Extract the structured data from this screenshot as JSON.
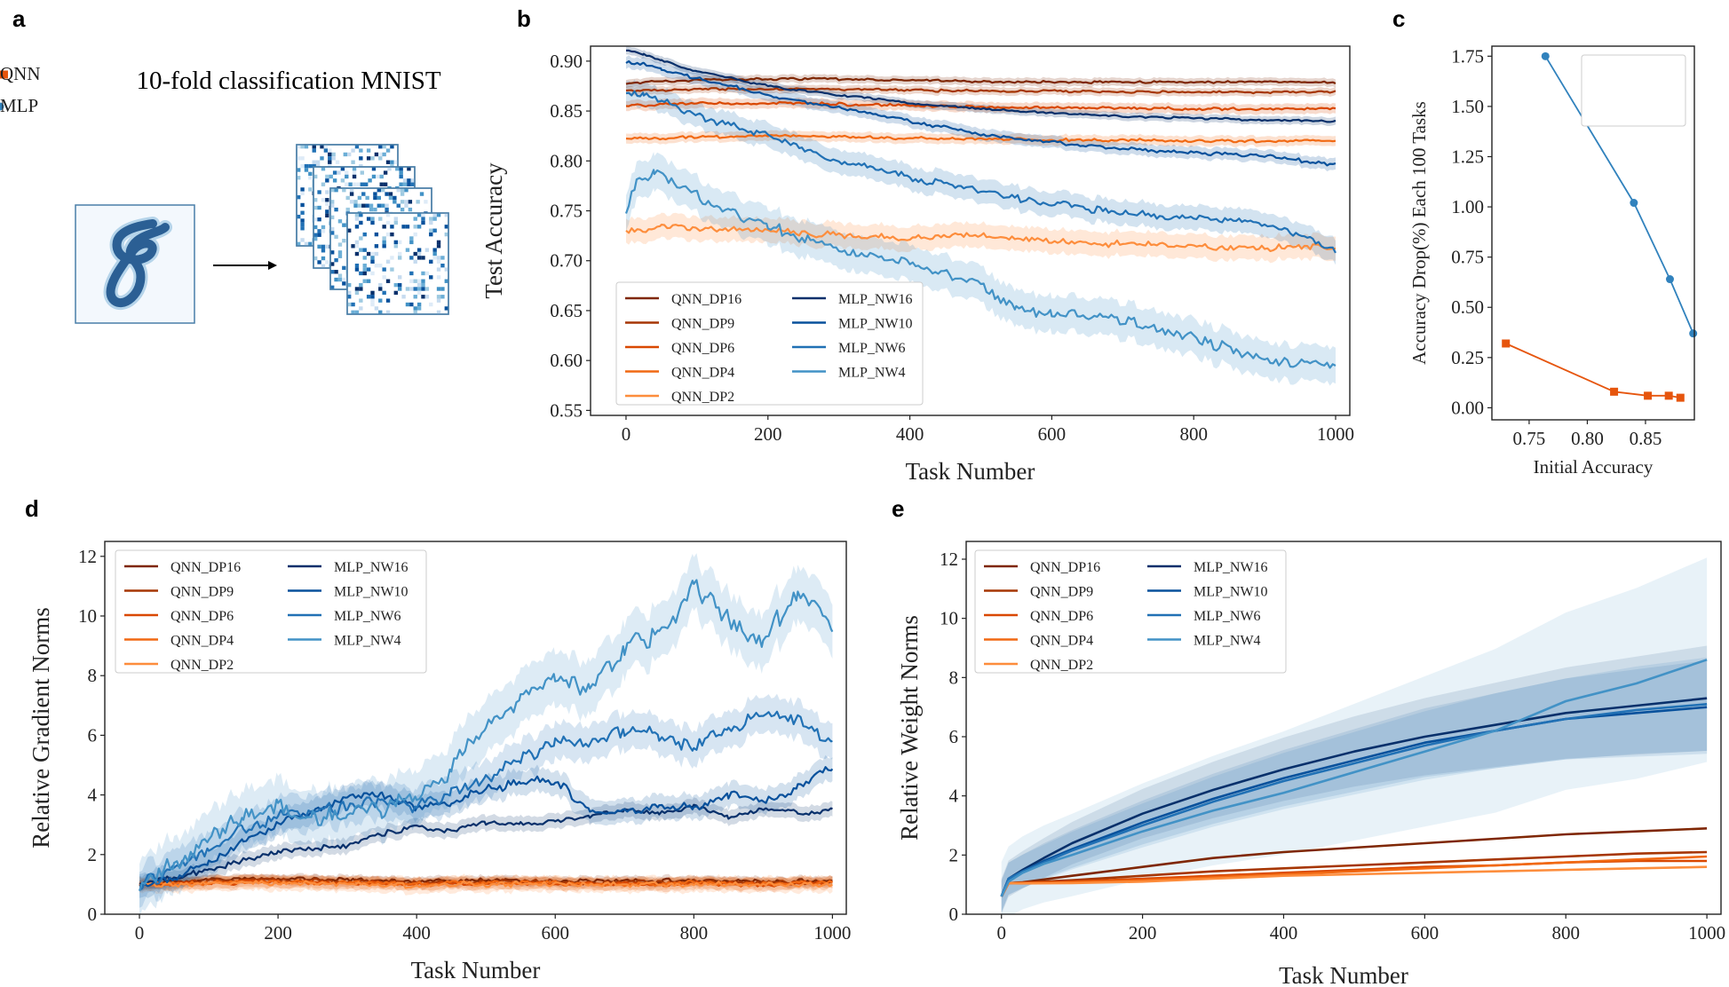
{
  "panel_labels": {
    "a": "a",
    "b": "b",
    "c": "c",
    "d": "d",
    "e": "e"
  },
  "colors": {
    "QNN_DP16": "#7f2704",
    "QNN_DP9": "#a63603",
    "QNN_DP6": "#d94801",
    "QNN_DP4": "#f16913",
    "QNN_DP2": "#fd8d3c",
    "MLP_NW16": "#08306b",
    "MLP_NW10": "#08519c",
    "MLP_NW6": "#2171b5",
    "MLP_NW4": "#4292c6",
    "QNN": "#e6550d",
    "MLP": "#3182bd"
  },
  "panel_a": {
    "title": "10-fold classification MNIST",
    "arrow": "→"
  },
  "chart_data": [
    {
      "id": "b",
      "type": "line",
      "title": "",
      "xlabel": "Task Number",
      "ylabel": "Test Accuracy",
      "xlim": [
        -50,
        1020
      ],
      "ylim": [
        0.545,
        0.915
      ],
      "xticks": [
        0,
        200,
        400,
        600,
        800,
        1000
      ],
      "yticks": [
        0.55,
        0.6,
        0.65,
        0.7,
        0.75,
        0.8,
        0.85,
        0.9
      ],
      "legend": "lower-left",
      "series": [
        {
          "name": "QNN_DP16",
          "x": [
            0,
            100,
            200,
            300,
            400,
            500,
            600,
            700,
            800,
            900,
            1000
          ],
          "values": [
            0.878,
            0.881,
            0.882,
            0.882,
            0.881,
            0.879,
            0.879,
            0.879,
            0.879,
            0.879,
            0.879
          ],
          "band": 0.004
        },
        {
          "name": "QNN_DP9",
          "x": [
            0,
            100,
            200,
            300,
            400,
            500,
            600,
            700,
            800,
            900,
            1000
          ],
          "values": [
            0.87,
            0.872,
            0.872,
            0.872,
            0.871,
            0.87,
            0.87,
            0.869,
            0.869,
            0.869,
            0.869
          ],
          "band": 0.004
        },
        {
          "name": "QNN_DP6",
          "x": [
            0,
            100,
            200,
            300,
            400,
            500,
            600,
            700,
            800,
            900,
            1000
          ],
          "values": [
            0.855,
            0.858,
            0.858,
            0.857,
            0.855,
            0.854,
            0.853,
            0.853,
            0.852,
            0.852,
            0.852
          ],
          "band": 0.005
        },
        {
          "name": "QNN_DP4",
          "x": [
            0,
            100,
            200,
            300,
            400,
            500,
            600,
            700,
            800,
            900,
            1000
          ],
          "values": [
            0.822,
            0.824,
            0.825,
            0.824,
            0.823,
            0.822,
            0.821,
            0.821,
            0.82,
            0.82,
            0.82
          ],
          "band": 0.005
        },
        {
          "name": "QNN_DP2",
          "x": [
            0,
            50,
            100,
            200,
            300,
            400,
            500,
            600,
            700,
            800,
            900,
            1000
          ],
          "values": [
            0.728,
            0.735,
            0.732,
            0.73,
            0.726,
            0.722,
            0.724,
            0.721,
            0.716,
            0.714,
            0.713,
            0.713
          ],
          "band": 0.012
        },
        {
          "name": "MLP_NW16",
          "x": [
            0,
            25,
            50,
            100,
            200,
            300,
            400,
            500,
            600,
            700,
            800,
            900,
            1000
          ],
          "values": [
            0.91,
            0.907,
            0.9,
            0.89,
            0.875,
            0.866,
            0.858,
            0.852,
            0.848,
            0.845,
            0.843,
            0.841,
            0.84
          ],
          "band": 0.004
        },
        {
          "name": "MLP_NW10",
          "x": [
            0,
            25,
            50,
            100,
            200,
            300,
            400,
            500,
            600,
            700,
            800,
            900,
            1000
          ],
          "values": [
            0.9,
            0.897,
            0.892,
            0.883,
            0.866,
            0.853,
            0.84,
            0.827,
            0.819,
            0.812,
            0.808,
            0.805,
            0.796
          ],
          "band": 0.006
        },
        {
          "name": "MLP_NW6",
          "x": [
            0,
            25,
            50,
            100,
            200,
            300,
            400,
            500,
            600,
            700,
            800,
            900,
            1000
          ],
          "values": [
            0.868,
            0.866,
            0.86,
            0.845,
            0.825,
            0.8,
            0.783,
            0.77,
            0.757,
            0.748,
            0.742,
            0.738,
            0.71
          ],
          "band": 0.012
        },
        {
          "name": "MLP_NW4",
          "x": [
            0,
            15,
            40,
            60,
            100,
            150,
            200,
            300,
            400,
            500,
            550,
            600,
            700,
            800,
            900,
            1000
          ],
          "values": [
            0.745,
            0.78,
            0.788,
            0.78,
            0.765,
            0.748,
            0.735,
            0.712,
            0.697,
            0.675,
            0.65,
            0.648,
            0.64,
            0.622,
            0.6,
            0.597
          ],
          "band": 0.018
        }
      ]
    },
    {
      "id": "c",
      "type": "line",
      "title": "",
      "xlabel": "Initial Accuracy",
      "ylabel": "Accuracy Drop(%) Each 100 Tasks",
      "xlim": [
        0.718,
        0.892
      ],
      "ylim": [
        -0.06,
        1.8
      ],
      "xticks": [
        0.75,
        0.8,
        0.85
      ],
      "ytick_labels": [
        "0.00",
        "0.25",
        "0.50",
        "0.75",
        "1.00",
        "1.25",
        "1.50",
        "1.75"
      ],
      "yticks": [
        0.0,
        0.25,
        0.5,
        0.75,
        1.0,
        1.25,
        1.5,
        1.75
      ],
      "legend": "top-right",
      "series": [
        {
          "name": "QNN",
          "x": [
            0.73,
            0.823,
            0.852,
            0.87,
            0.88
          ],
          "values": [
            0.32,
            0.08,
            0.06,
            0.06,
            0.05
          ],
          "marker": "square"
        },
        {
          "name": "MLP",
          "x": [
            0.764,
            0.84,
            0.871,
            0.891
          ],
          "values": [
            1.75,
            1.02,
            0.64,
            0.37
          ],
          "marker": "circle"
        }
      ]
    },
    {
      "id": "d",
      "type": "line",
      "title": "",
      "xlabel": "Task Number",
      "ylabel": "Relative Gradient Norms",
      "xlim": [
        -50,
        1020
      ],
      "ylim": [
        0,
        12.5
      ],
      "xticks": [
        0,
        200,
        400,
        600,
        800,
        1000
      ],
      "yticks": [
        0,
        2,
        4,
        6,
        8,
        10,
        12
      ],
      "legend": "top-left",
      "series": [
        {
          "name": "QNN_DP16",
          "x": [
            0,
            100,
            200,
            300,
            400,
            500,
            600,
            700,
            800,
            900,
            1000
          ],
          "values": [
            1.0,
            1.15,
            1.2,
            1.15,
            1.1,
            1.15,
            1.1,
            1.1,
            1.15,
            1.1,
            1.12
          ],
          "band": 0.15
        },
        {
          "name": "QNN_DP9",
          "x": [
            0,
            100,
            200,
            300,
            400,
            500,
            600,
            700,
            800,
            900,
            1000
          ],
          "values": [
            1.0,
            1.1,
            1.15,
            1.1,
            1.05,
            1.1,
            1.08,
            1.05,
            1.1,
            1.05,
            1.08
          ],
          "band": 0.15
        },
        {
          "name": "QNN_DP6",
          "x": [
            0,
            100,
            200,
            300,
            400,
            500,
            600,
            700,
            800,
            900,
            1000
          ],
          "values": [
            1.0,
            1.05,
            1.1,
            1.05,
            1.0,
            1.05,
            1.02,
            1.0,
            1.05,
            1.0,
            1.05
          ],
          "band": 0.2
        },
        {
          "name": "QNN_DP4",
          "x": [
            0,
            100,
            200,
            300,
            400,
            500,
            600,
            700,
            800,
            900,
            1000
          ],
          "values": [
            1.0,
            1.05,
            1.08,
            1.05,
            1.02,
            1.05,
            1.03,
            1.02,
            1.05,
            1.02,
            1.05
          ],
          "band": 0.2
        },
        {
          "name": "QNN_DP2",
          "x": [
            0,
            100,
            200,
            300,
            400,
            500,
            600,
            700,
            800,
            900,
            1000
          ],
          "values": [
            1.0,
            1.02,
            1.05,
            1.0,
            0.98,
            1.02,
            1.0,
            0.98,
            1.0,
            0.98,
            1.0
          ],
          "band": 0.25
        },
        {
          "name": "MLP_NW16",
          "x": [
            0,
            50,
            100,
            150,
            200,
            250,
            300,
            350,
            400,
            450,
            500,
            550,
            600,
            650,
            700,
            750,
            800,
            850,
            900,
            950,
            1000
          ],
          "values": [
            1.0,
            1.2,
            1.5,
            1.8,
            2.1,
            2.2,
            2.3,
            2.7,
            2.9,
            2.8,
            3.1,
            3.0,
            3.1,
            3.3,
            3.5,
            3.4,
            3.6,
            3.3,
            3.5,
            3.4,
            3.5
          ],
          "band": 0.25
        },
        {
          "name": "MLP_NW10",
          "x": [
            0,
            50,
            100,
            150,
            200,
            250,
            300,
            350,
            400,
            450,
            500,
            550,
            600,
            650,
            700,
            750,
            800,
            850,
            900,
            950,
            1000
          ],
          "values": [
            1.0,
            1.2,
            1.7,
            2.5,
            3.0,
            3.5,
            3.9,
            4.0,
            3.6,
            3.7,
            4.2,
            4.4,
            4.5,
            3.5,
            3.4,
            3.6,
            3.6,
            4.0,
            3.8,
            4.2,
            5.0
          ],
          "band": 0.4
        },
        {
          "name": "MLP_NW6",
          "x": [
            0,
            50,
            100,
            150,
            200,
            250,
            300,
            350,
            400,
            450,
            500,
            550,
            600,
            650,
            700,
            750,
            800,
            850,
            900,
            950,
            1000
          ],
          "values": [
            1.0,
            1.4,
            2.2,
            2.9,
            3.3,
            3.5,
            3.6,
            3.8,
            3.6,
            4.0,
            4.5,
            5.2,
            5.8,
            5.7,
            6.2,
            6.0,
            5.6,
            6.2,
            6.8,
            6.5,
            5.8
          ],
          "band": 0.6
        },
        {
          "name": "MLP_NW4",
          "x": [
            0,
            50,
            100,
            150,
            200,
            250,
            300,
            350,
            400,
            450,
            500,
            550,
            600,
            650,
            700,
            750,
            800,
            850,
            900,
            950,
            1000
          ],
          "values": [
            1.0,
            1.6,
            2.6,
            3.3,
            3.5,
            3.3,
            3.5,
            3.6,
            4.0,
            4.8,
            6.3,
            7.2,
            8.0,
            7.5,
            9.0,
            9.3,
            11.0,
            9.8,
            9.2,
            10.8,
            9.8
          ],
          "band": 0.9
        }
      ]
    },
    {
      "id": "e",
      "type": "line",
      "title": "",
      "xlabel": "Task Number",
      "ylabel": "Relative Weight Norms",
      "xlim": [
        -50,
        1020
      ],
      "ylim": [
        0,
        12.6
      ],
      "xticks": [
        0,
        200,
        400,
        600,
        800,
        1000
      ],
      "yticks": [
        0,
        2,
        4,
        6,
        8,
        10,
        12
      ],
      "legend": "top-left",
      "series": [
        {
          "name": "QNN_DP16",
          "x": [
            0,
            10,
            30,
            100,
            200,
            300,
            400,
            500,
            600,
            700,
            800,
            900,
            1000
          ],
          "values": [
            0.6,
            1.05,
            1.08,
            1.3,
            1.6,
            1.9,
            2.1,
            2.25,
            2.4,
            2.55,
            2.7,
            2.8,
            2.9
          ],
          "band": 0.0
        },
        {
          "name": "QNN_DP9",
          "x": [
            0,
            10,
            30,
            100,
            200,
            300,
            400,
            500,
            600,
            700,
            800,
            900,
            1000
          ],
          "values": [
            0.6,
            1.05,
            1.07,
            1.15,
            1.3,
            1.45,
            1.55,
            1.65,
            1.75,
            1.85,
            1.95,
            2.05,
            2.1
          ],
          "band": 0.0
        },
        {
          "name": "QNN_DP6",
          "x": [
            0,
            10,
            30,
            100,
            200,
            300,
            400,
            500,
            600,
            700,
            800,
            900,
            1000
          ],
          "values": [
            0.6,
            1.05,
            1.06,
            1.1,
            1.2,
            1.3,
            1.4,
            1.5,
            1.6,
            1.65,
            1.75,
            1.8,
            1.8
          ],
          "band": 0.0
        },
        {
          "name": "QNN_DP4",
          "x": [
            0,
            10,
            30,
            100,
            200,
            300,
            400,
            500,
            600,
            700,
            800,
            900,
            1000
          ],
          "values": [
            0.6,
            1.05,
            1.05,
            1.08,
            1.15,
            1.25,
            1.35,
            1.45,
            1.55,
            1.65,
            1.75,
            1.85,
            1.95
          ],
          "band": 0.0
        },
        {
          "name": "QNN_DP2",
          "x": [
            0,
            10,
            30,
            100,
            200,
            300,
            400,
            500,
            600,
            700,
            800,
            900,
            1000
          ],
          "values": [
            0.6,
            1.05,
            1.04,
            1.05,
            1.1,
            1.2,
            1.3,
            1.35,
            1.4,
            1.45,
            1.5,
            1.55,
            1.6
          ],
          "band": 0.0
        },
        {
          "name": "MLP_NW16",
          "x": [
            0,
            10,
            30,
            60,
            100,
            200,
            300,
            400,
            500,
            600,
            700,
            800,
            900,
            1000
          ],
          "values": [
            0.6,
            1.2,
            1.5,
            1.9,
            2.4,
            3.4,
            4.2,
            4.9,
            5.5,
            6.0,
            6.4,
            6.8,
            7.05,
            7.3
          ],
          "band": 1.8
        },
        {
          "name": "MLP_NW10",
          "x": [
            0,
            10,
            30,
            60,
            100,
            200,
            300,
            400,
            500,
            600,
            700,
            800,
            900,
            1000
          ],
          "values": [
            0.6,
            1.2,
            1.45,
            1.8,
            2.2,
            3.1,
            3.9,
            4.6,
            5.2,
            5.8,
            6.2,
            6.6,
            6.8,
            7.0
          ],
          "band": 1.6
        },
        {
          "name": "MLP_NW6",
          "x": [
            0,
            10,
            30,
            60,
            100,
            200,
            300,
            400,
            500,
            600,
            700,
            800,
            900,
            1000
          ],
          "values": [
            0.6,
            1.2,
            1.45,
            1.75,
            2.15,
            3.0,
            3.8,
            4.5,
            5.1,
            5.7,
            6.2,
            6.6,
            6.9,
            7.1
          ],
          "band": 1.6
        },
        {
          "name": "MLP_NW4",
          "x": [
            0,
            10,
            30,
            60,
            100,
            200,
            300,
            400,
            500,
            600,
            700,
            800,
            900,
            1000
          ],
          "values": [
            0.6,
            1.1,
            1.4,
            1.7,
            2.0,
            2.8,
            3.5,
            4.1,
            4.8,
            5.5,
            6.2,
            7.2,
            7.8,
            8.6
          ],
          "band": 3.5
        }
      ]
    }
  ]
}
